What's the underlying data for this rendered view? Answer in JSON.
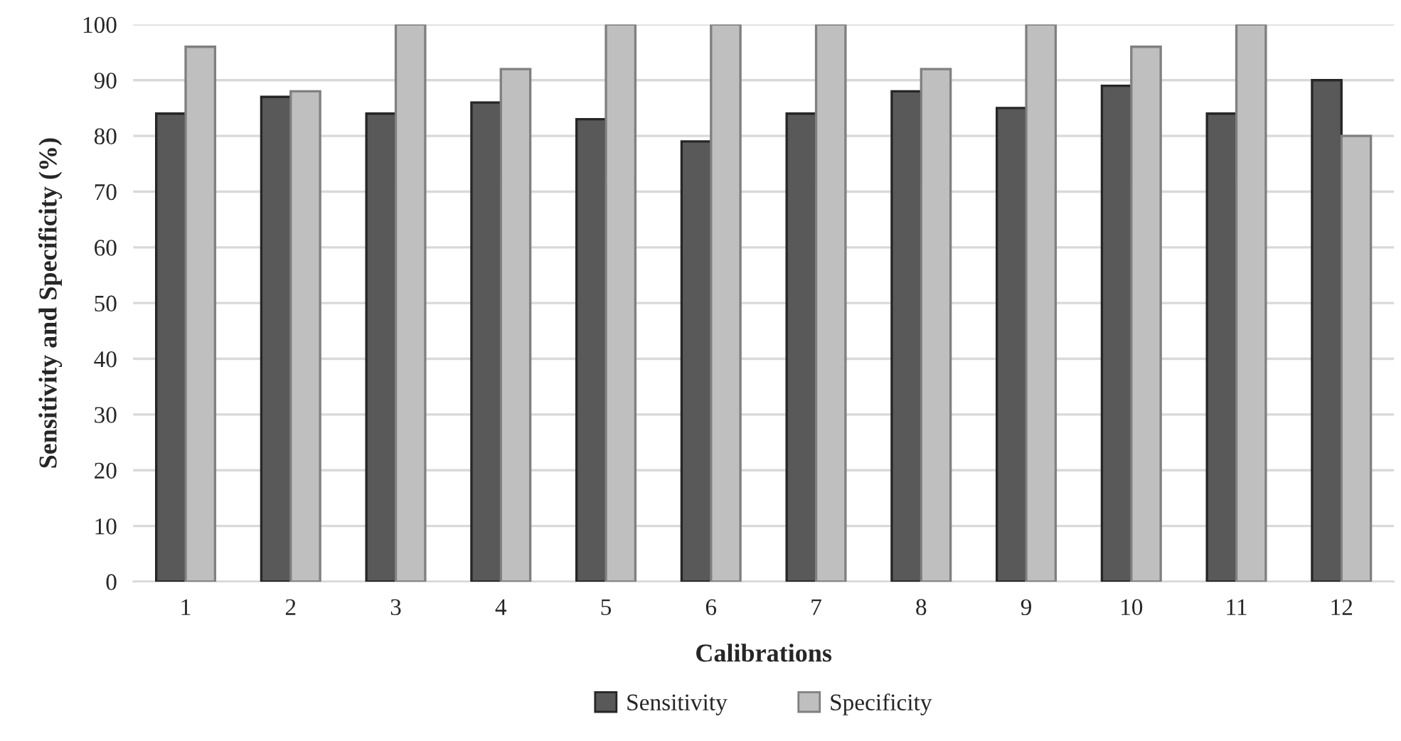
{
  "chart_data": {
    "type": "bar",
    "xlabel": "Calibrations",
    "ylabel": "Sensitivity and Specificity (%)",
    "categories": [
      "1",
      "2",
      "3",
      "4",
      "5",
      "6",
      "7",
      "8",
      "9",
      "10",
      "11",
      "12"
    ],
    "series": [
      {
        "name": "Sensitivity",
        "color": "#595959",
        "values": [
          84,
          87,
          84,
          86,
          83,
          79,
          84,
          88,
          85,
          89,
          84,
          90
        ]
      },
      {
        "name": "Specificity",
        "color": "#bfbfbf",
        "values": [
          96,
          88,
          100,
          92,
          100,
          100,
          100,
          92,
          100,
          96,
          100,
          80
        ]
      }
    ],
    "ylim": [
      0,
      100
    ],
    "yticks": [
      0,
      10,
      20,
      30,
      40,
      50,
      60,
      70,
      80,
      90,
      100
    ],
    "grid": "y",
    "legend": "bottom"
  }
}
